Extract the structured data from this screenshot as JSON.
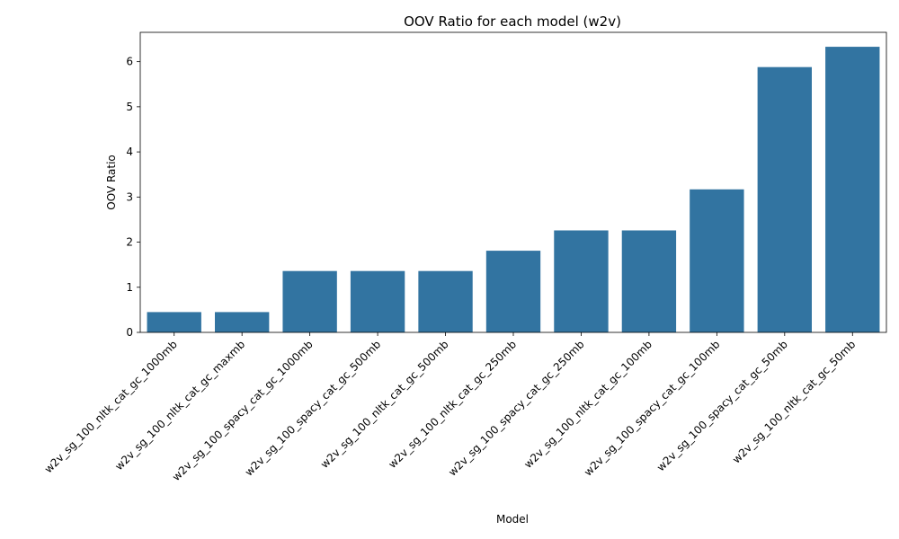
{
  "chart_data": {
    "type": "bar",
    "title": "OOV Ratio for each model (w2v)",
    "xlabel": "Model",
    "ylabel": "OOV Ratio",
    "categories": [
      "w2v_sg_100_nltk_cat_gc_1000mb",
      "w2v_sg_100_nltk_cat_gc_maxmb",
      "w2v_sg_100_spacy_cat_gc_1000mb",
      "w2v_sg_100_spacy_cat_gc_500mb",
      "w2v_sg_100_nltk_cat_gc_500mb",
      "w2v_sg_100_nltk_cat_gc_250mb",
      "w2v_sg_100_spacy_cat_gc_250mb",
      "w2v_sg_100_nltk_cat_gc_100mb",
      "w2v_sg_100_spacy_cat_gc_100mb",
      "w2v_sg_100_spacy_cat_gc_50mb",
      "w2v_sg_100_nltk_cat_gc_50mb"
    ],
    "values": [
      0.45,
      0.45,
      1.36,
      1.36,
      1.36,
      1.81,
      2.26,
      2.26,
      3.17,
      5.88,
      6.33
    ],
    "ylim": [
      0,
      6.65
    ],
    "yticks": [
      0,
      1,
      2,
      3,
      4,
      5,
      6
    ],
    "bar_color": "#3274a1",
    "grid": false,
    "legend": "none"
  }
}
